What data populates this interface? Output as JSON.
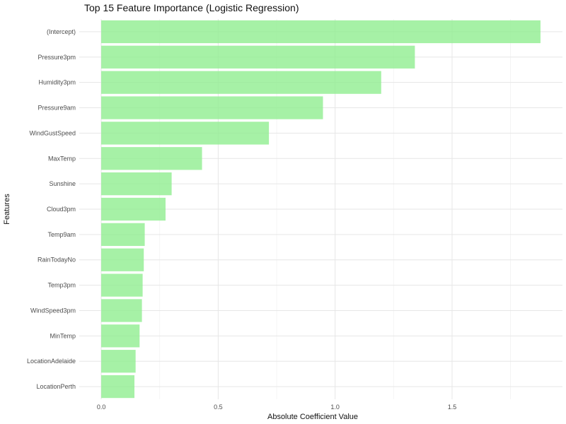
{
  "chart_data": {
    "type": "bar",
    "orientation": "horizontal",
    "title": "Top 15 Feature Importance (Logistic Regression)",
    "xlabel": "Absolute Coefficient Value",
    "ylabel": "Features",
    "categories": [
      "(Intercept)",
      "Pressure3pm",
      "Humidity3pm",
      "Pressure9am",
      "WindGustSpeed",
      "MaxTemp",
      "Sunshine",
      "Cloud3pm",
      "Temp9am",
      "RainTodayNo",
      "Temp3pm",
      "WindSpeed3pm",
      "MinTemp",
      "LocationAdelaide",
      "LocationPerth"
    ],
    "values": [
      1.878,
      1.341,
      1.197,
      0.948,
      0.717,
      0.431,
      0.301,
      0.275,
      0.186,
      0.182,
      0.177,
      0.174,
      0.164,
      0.147,
      0.142
    ],
    "xticks": [
      "0.0",
      "0.5",
      "1.0",
      "1.5"
    ],
    "xtick_values": [
      0,
      0.5,
      1.0,
      1.5
    ],
    "xlim": [
      -0.094,
      1.972
    ],
    "bar_color": "#90ee90",
    "grid": true,
    "legend": "none"
  }
}
